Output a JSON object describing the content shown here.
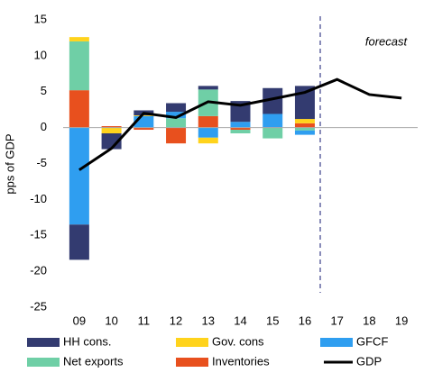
{
  "chart_data": {
    "type": "stacked-bar-line",
    "y_label": "pps of GDP",
    "annotation": "forecast",
    "categories": [
      "09",
      "10",
      "11",
      "12",
      "13",
      "14",
      "15",
      "16",
      "17",
      "18",
      "19"
    ],
    "ylim": [
      -25,
      15
    ],
    "yticks": [
      -25,
      -20,
      -15,
      -10,
      -5,
      0,
      5,
      10,
      15
    ],
    "series": [
      {
        "name": "HH cons.",
        "type": "bar",
        "color": "#333b70",
        "values": [
          -4.9,
          -2.2,
          0.7,
          1.2,
          0.5,
          2.9,
          3.6,
          4.6,
          null,
          null,
          null
        ]
      },
      {
        "name": "Gov. cons",
        "type": "bar",
        "color": "#ffd31c",
        "values": [
          0.6,
          -0.8,
          0.1,
          0,
          -0.8,
          0,
          0,
          0.6,
          null,
          null,
          null
        ]
      },
      {
        "name": "GFCF",
        "type": "bar",
        "color": "#2f9ef0",
        "values": [
          -13.5,
          0,
          1.6,
          0.9,
          -1.4,
          0.8,
          1.9,
          -0.6,
          null,
          null,
          null
        ]
      },
      {
        "name": "Net exports",
        "type": "bar",
        "color": "#6fcfa6",
        "values": [
          6.8,
          0,
          0,
          1.3,
          3.7,
          -0.5,
          -1.5,
          -0.4,
          null,
          null,
          null
        ]
      },
      {
        "name": "Inventories",
        "type": "bar",
        "color": "#e8501e",
        "values": [
          5.2,
          0.2,
          -0.3,
          -2.2,
          1.6,
          -0.3,
          0,
          0.6,
          null,
          null,
          null
        ]
      },
      {
        "name": "GDP",
        "type": "line",
        "color": "#000000",
        "values": [
          -5.9,
          -2.9,
          2.0,
          1.4,
          3.6,
          3.1,
          4.0,
          4.9,
          6.7,
          4.6,
          4.1
        ]
      }
    ]
  }
}
